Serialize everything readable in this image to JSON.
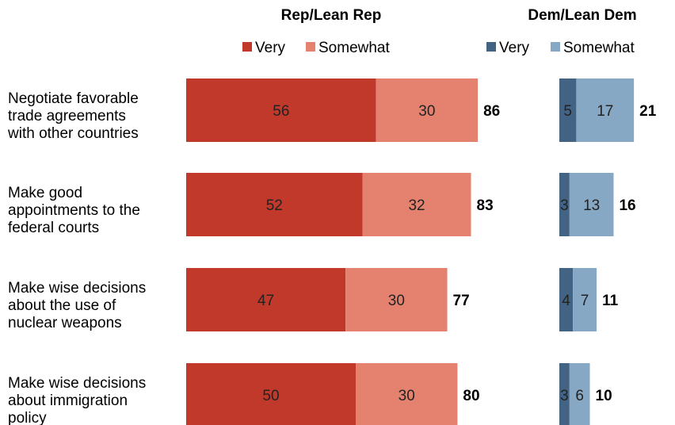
{
  "chart_data": {
    "type": "bar",
    "orientation": "horizontal",
    "stacked": true,
    "categories": [
      [
        "Negotiate favorable",
        "trade agreements",
        "with other countries"
      ],
      [
        "Make good",
        "appointments to the",
        "federal courts"
      ],
      [
        "Make wise decisions",
        "about the use of",
        "nuclear weapons"
      ],
      [
        "Make wise decisions",
        "about immigration",
        "policy"
      ]
    ],
    "panels": [
      {
        "title": "Rep/Lean Rep",
        "series": [
          {
            "name": "Very",
            "color": "#c0392b",
            "values": [
              56,
              52,
              47,
              50
            ]
          },
          {
            "name": "Somewhat",
            "color": "#e4826f",
            "values": [
              30,
              32,
              30,
              30
            ]
          }
        ],
        "totals": [
          86,
          83,
          77,
          80
        ]
      },
      {
        "title": "Dem/Lean Dem",
        "series": [
          {
            "name": "Very",
            "color": "#436384",
            "values": [
              5,
              3,
              4,
              3
            ]
          },
          {
            "name": "Somewhat",
            "color": "#86a8c4",
            "values": [
              17,
              13,
              7,
              6
            ]
          }
        ],
        "totals": [
          21,
          16,
          11,
          10
        ]
      }
    ],
    "grid": false,
    "legend": "top"
  }
}
